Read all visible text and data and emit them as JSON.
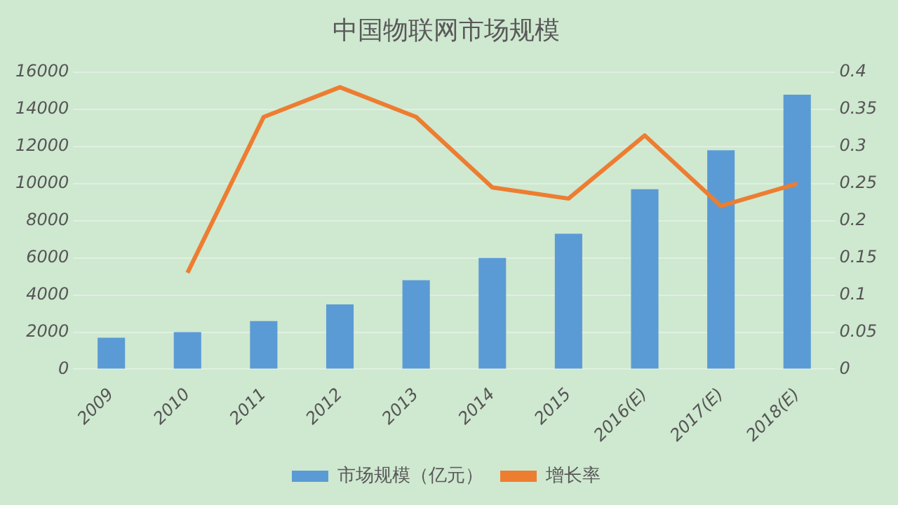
{
  "chart_data": {
    "type": "bar",
    "title": "中国物联网市场规模",
    "categories": [
      "2009",
      "2010",
      "2011",
      "2012",
      "2013",
      "2014",
      "2015",
      "2016(E)",
      "2017(E)",
      "2018(E)"
    ],
    "series": [
      {
        "name": "市场规模（亿元）",
        "color": "#5b9bd5",
        "values": [
          1700,
          2000,
          2600,
          3500,
          4800,
          6000,
          7300,
          9700,
          11800,
          14800
        ]
      },
      {
        "name": "增长率",
        "type": "line",
        "axis": "y2",
        "color": "#ed7d31",
        "values": [
          null,
          0.13,
          0.34,
          0.38,
          0.34,
          0.245,
          0.23,
          0.315,
          0.22,
          0.25
        ]
      }
    ],
    "ylim": [
      0,
      16000
    ],
    "yticks": [
      0,
      2000,
      4000,
      6000,
      8000,
      10000,
      12000,
      14000,
      16000
    ],
    "y2lim": [
      0,
      0.4
    ],
    "y2ticks": [
      0,
      0.05,
      0.1,
      0.15,
      0.2,
      0.25,
      0.3,
      0.35,
      0.4
    ],
    "grid": "y",
    "legend": "bottom",
    "marker": "none"
  }
}
